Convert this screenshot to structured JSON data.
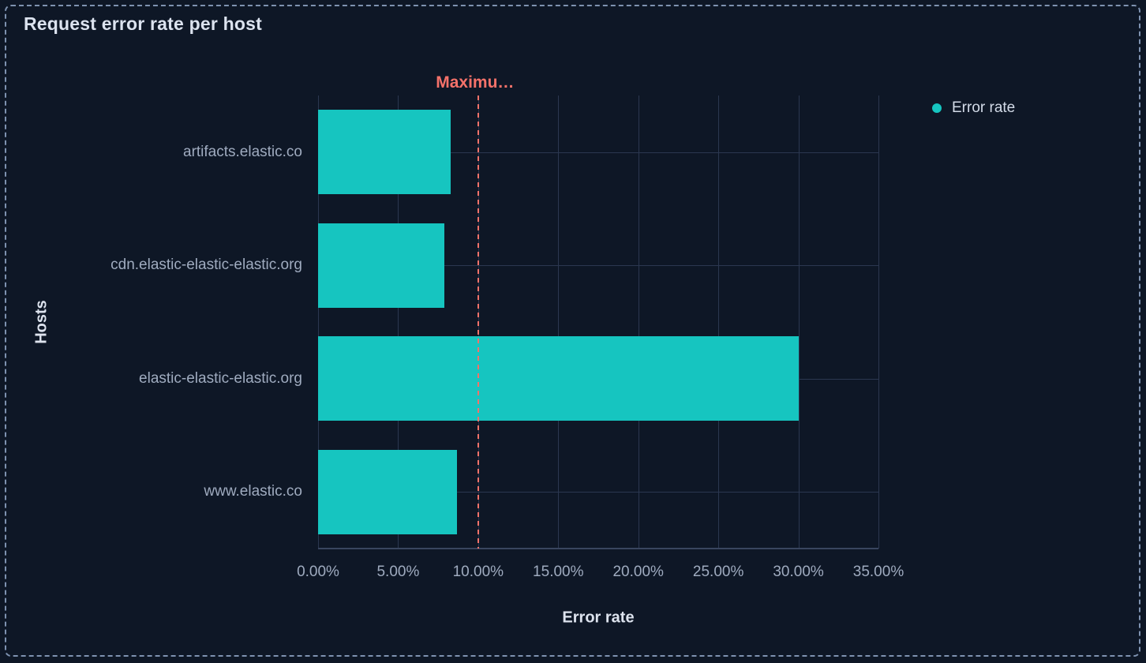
{
  "panel": {
    "title": "Request error rate per host"
  },
  "legend": {
    "position": "right",
    "items": [
      {
        "label": "Error rate",
        "color": "#16c5c0"
      }
    ]
  },
  "colors": {
    "background": "#0e1726",
    "panel_border": "#7e92b0",
    "bar": "#16c5c0",
    "annotation": "#f6726a",
    "gridline": "#2b3750",
    "axis_line": "#39465f",
    "text_primary": "#dde3ee",
    "text_secondary": "#9fabbf"
  },
  "chart_data": {
    "type": "bar",
    "orientation": "horizontal",
    "title": "Request error rate per host",
    "categories": [
      "artifacts.elastic.co",
      "cdn.elastic-elastic-elastic.org",
      "elastic-elastic-elastic.org",
      "www.elastic.co"
    ],
    "series": [
      {
        "name": "Error rate",
        "color": "#16c5c0",
        "values": [
          8.3,
          7.9,
          30.0,
          8.7
        ]
      }
    ],
    "xlabel": "Error rate",
    "ylabel": "Hosts",
    "xlim": [
      0,
      35
    ],
    "x_tick_values": [
      0,
      5,
      10,
      15,
      20,
      25,
      30,
      35
    ],
    "x_tick_labels": [
      "0.00%",
      "5.00%",
      "10.00%",
      "15.00%",
      "20.00%",
      "25.00%",
      "30.00%",
      "35.00%"
    ],
    "grid": true,
    "legend_position": "right",
    "annotation": {
      "label": "Maximu…",
      "value": 10,
      "color": "#f6726a",
      "line_style": "dashed"
    }
  }
}
